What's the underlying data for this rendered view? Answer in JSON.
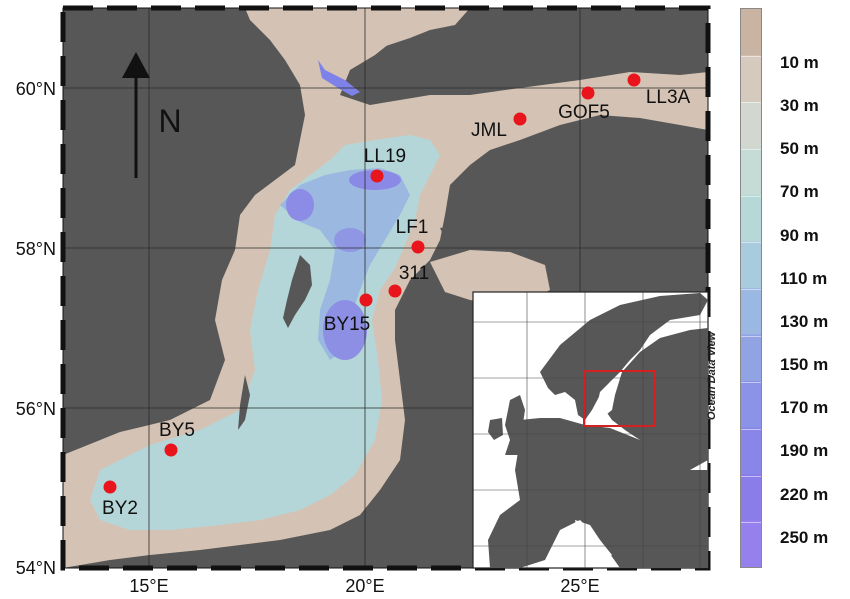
{
  "map": {
    "lat_labels": [
      "60°N",
      "58°N",
      "56°N",
      "54°N"
    ],
    "lon_labels": [
      "15°E",
      "20°E",
      "25°E"
    ],
    "north_label": "N",
    "stations": [
      {
        "name": "LL3A"
      },
      {
        "name": "GOF5"
      },
      {
        "name": "JML"
      },
      {
        "name": "LL19"
      },
      {
        "name": "LF1"
      },
      {
        "name": "311"
      },
      {
        "name": "BY15"
      },
      {
        "name": "BY5"
      },
      {
        "name": "BY2"
      }
    ]
  },
  "colorbar": {
    "labels": [
      "10 m",
      "30 m",
      "50 m",
      "70 m",
      "90 m",
      "110 m",
      "130 m",
      "150 m",
      "170 m",
      "190 m",
      "220 m",
      "250 m"
    ],
    "colors": [
      "#c9b3a3",
      "#d6c9bd",
      "#d2d8cf",
      "#c5dbd6",
      "#b6d9d8",
      "#a8cbdd",
      "#9ab8e1",
      "#92a3e3",
      "#8a93e5",
      "#8886e8",
      "#8a7ce9",
      "#9680ee"
    ]
  },
  "watermark": "Ocean Data View",
  "colors": {
    "land": "#575757",
    "shallow_sea": "#d4c3b4",
    "station": "#e8161c",
    "inset_box": "#d42020"
  }
}
